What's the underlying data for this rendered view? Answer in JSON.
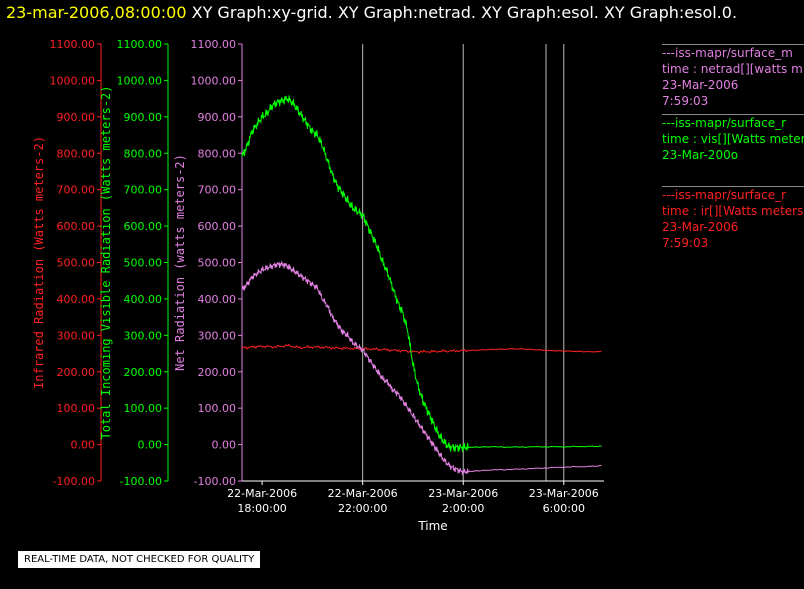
{
  "header": {
    "date": "23-mar-2006,08:00:00",
    "graphs": "XY Graph:xy-grid.  XY Graph:netrad.  XY Graph:esol.  XY Graph:esol.0."
  },
  "legend": {
    "netrad": {
      "title": "---iss-mapr/surface_m",
      "lines": [
        "time : netrad[][watts m",
        "23-Mar-2006",
        "7:59:03"
      ]
    },
    "vis": {
      "title": "---iss-mapr/surface_r",
      "lines": [
        "time : vis[][Watts meter",
        "23-Mar-200o"
      ]
    },
    "ir": {
      "title": "---iss-mapr/surface_r",
      "lines": [
        "time : ir[][Watts meters",
        "23-Mar-2006",
        "7:59:03"
      ]
    }
  },
  "qc_note": "REAL-TIME DATA, NOT CHECKED FOR QUALITY",
  "colors": {
    "ir": "#ff2020",
    "vis": "#00ff00",
    "netrad": "#e080e0",
    "grid": "#bbbbbb"
  },
  "chart_data": {
    "type": "line",
    "xlabel": "Time",
    "x_ticks": [
      {
        "hour": 0,
        "label": [
          "22-Mar-2006",
          "18:00:00"
        ]
      },
      {
        "hour": 4,
        "label": [
          "22-Mar-2006",
          "22:00:00"
        ]
      },
      {
        "hour": 8,
        "label": [
          "23-Mar-2006",
          "2:00:00"
        ]
      },
      {
        "hour": 12,
        "label": [
          "23-Mar-2006",
          "6:00:00"
        ]
      }
    ],
    "x_unit": "hours since 22-Mar-2006 18:00:00",
    "xlim": [
      -0.8,
      13.6
    ],
    "grid": true,
    "axes": [
      {
        "id": "ir",
        "label": "Infrared Radiation (Watts meters-2)",
        "ylim": [
          -100,
          1100
        ],
        "ticks": [
          "-100.00",
          "0.00",
          "100.00",
          "200.00",
          "300.00",
          "400.00",
          "500.00",
          "600.00",
          "700.00",
          "800.00",
          "900.00",
          "1000.00",
          "1100.00"
        ]
      },
      {
        "id": "vis",
        "label": "Total Incoming Visible Radiation (Watts meters-2)",
        "ylim": [
          -100,
          1100
        ],
        "ticks": [
          "-100.00",
          "0.00",
          "100.00",
          "200.00",
          "300.00",
          "400.00",
          "500.00",
          "600.00",
          "700.00",
          "800.00",
          "900.00",
          "1000.00",
          "1100.00"
        ]
      },
      {
        "id": "netrad",
        "label": "Net Radiation (watts meters-2)",
        "ylim": [
          -100,
          1100
        ],
        "ticks": [
          "-100.00",
          "0.00",
          "100.00",
          "200.00",
          "300.00",
          "400.00",
          "500.00",
          "600.00",
          "700.00",
          "800.00",
          "900.00",
          "1000.00",
          "1100.00"
        ]
      }
    ],
    "series": [
      {
        "id": "vis",
        "axis": "vis",
        "x": [
          -0.8,
          -0.6,
          -0.4,
          -0.2,
          0,
          0.2,
          0.4,
          0.6,
          0.8,
          1,
          1.2,
          1.4,
          1.6,
          1.8,
          2,
          2.2,
          2.4,
          2.6,
          2.8,
          3,
          3.2,
          3.4,
          3.6,
          3.8,
          4,
          4.2,
          4.4,
          4.6,
          4.8,
          5,
          5.2,
          5.4,
          5.6,
          5.8,
          6,
          6.2,
          6.4,
          6.6,
          6.8,
          7,
          7.2,
          7.4,
          7.6,
          7.8,
          8,
          8.2,
          8.6,
          9,
          10,
          11,
          12,
          13,
          13.5
        ],
        "y": [
          790,
          820,
          860,
          880,
          900,
          910,
          930,
          940,
          945,
          950,
          940,
          920,
          900,
          880,
          860,
          850,
          820,
          780,
          740,
          710,
          690,
          670,
          650,
          640,
          630,
          600,
          570,
          540,
          500,
          470,
          430,
          390,
          360,
          310,
          220,
          160,
          120,
          90,
          60,
          30,
          10,
          -5,
          -8,
          -8,
          -8,
          -7,
          -7,
          -6,
          -7,
          -6,
          -6,
          -5,
          -5
        ]
      },
      {
        "id": "netrad",
        "axis": "netrad",
        "x": [
          -0.8,
          -0.6,
          -0.4,
          -0.2,
          0,
          0.2,
          0.4,
          0.6,
          0.8,
          1,
          1.2,
          1.4,
          1.6,
          1.8,
          2,
          2.2,
          2.4,
          2.6,
          2.8,
          3,
          3.2,
          3.4,
          3.6,
          3.8,
          4,
          4.2,
          4.4,
          4.6,
          4.8,
          5,
          5.2,
          5.4,
          5.6,
          5.8,
          6,
          6.2,
          6.4,
          6.6,
          6.8,
          7,
          7.2,
          7.4,
          7.6,
          7.8,
          8,
          8.2,
          8.6,
          9,
          10,
          11,
          12,
          13,
          13.5
        ],
        "y": [
          425,
          440,
          460,
          470,
          480,
          485,
          490,
          495,
          495,
          490,
          480,
          470,
          460,
          450,
          440,
          430,
          400,
          380,
          350,
          330,
          310,
          300,
          280,
          270,
          260,
          240,
          220,
          200,
          180,
          170,
          150,
          140,
          120,
          100,
          80,
          60,
          40,
          20,
          0,
          -20,
          -40,
          -55,
          -65,
          -70,
          -75,
          -74,
          -72,
          -70,
          -68,
          -65,
          -62,
          -60,
          -58
        ]
      },
      {
        "id": "ir",
        "axis": "ir",
        "x": [
          -0.8,
          -0.4,
          0,
          0.5,
          1,
          1.5,
          2,
          2.5,
          3,
          3.5,
          4,
          4.5,
          5,
          5.5,
          6,
          6.5,
          7,
          7.5,
          8,
          8.5,
          9,
          9.5,
          10,
          10.5,
          11,
          11.5,
          12,
          12.5,
          13,
          13.5
        ],
        "y": [
          265,
          268,
          270,
          268,
          272,
          266,
          268,
          267,
          265,
          264,
          263,
          262,
          260,
          258,
          255,
          255,
          256,
          257,
          258,
          259,
          261,
          262,
          263,
          262,
          260,
          258,
          257,
          256,
          255,
          255
        ]
      }
    ]
  }
}
